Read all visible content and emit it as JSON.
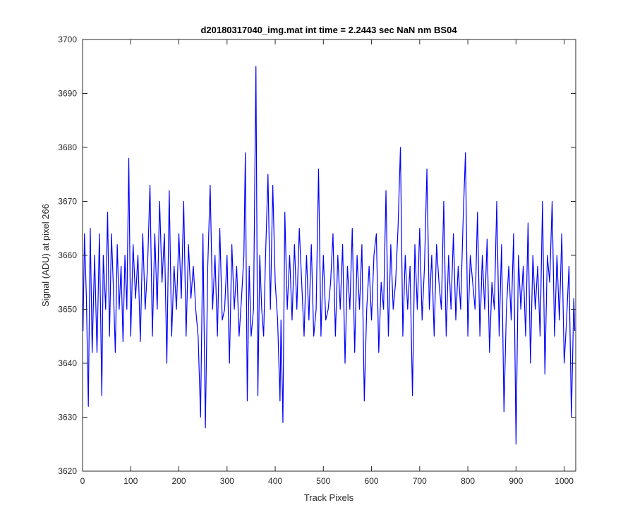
{
  "chart_data": {
    "type": "line",
    "title": "d20180317040_img.mat int time = 2.2443 sec  NaN nm BS04",
    "xlabel": "Track Pixels",
    "ylabel": "Signal (ADU) at pixel 266",
    "xlim": [
      0,
      1024
    ],
    "ylim": [
      3620,
      3700
    ],
    "xticks": [
      0,
      100,
      200,
      300,
      400,
      500,
      600,
      700,
      800,
      900,
      1000
    ],
    "yticks": [
      3620,
      3630,
      3640,
      3650,
      3660,
      3670,
      3680,
      3690,
      3700
    ],
    "grid": false,
    "series": [
      {
        "color": "#0000ff",
        "x": [
          1,
          4,
          8,
          12,
          16,
          20,
          25,
          30,
          35,
          40,
          43,
          48,
          52,
          56,
          60,
          64,
          68,
          72,
          76,
          80,
          84,
          88,
          92,
          96,
          100,
          105,
          110,
          115,
          120,
          125,
          130,
          135,
          140,
          145,
          150,
          155,
          160,
          165,
          170,
          175,
          180,
          185,
          190,
          195,
          200,
          205,
          210,
          215,
          220,
          225,
          230,
          235,
          240,
          245,
          250,
          255,
          260,
          265,
          270,
          275,
          280,
          285,
          290,
          295,
          300,
          305,
          310,
          315,
          320,
          325,
          330,
          335,
          338,
          342,
          346,
          350,
          355,
          360,
          364,
          368,
          372,
          376,
          380,
          385,
          390,
          395,
          400,
          405,
          410,
          412,
          416,
          420,
          425,
          430,
          435,
          440,
          445,
          450,
          455,
          460,
          465,
          470,
          475,
          480,
          485,
          490,
          495,
          500,
          505,
          510,
          515,
          520,
          525,
          530,
          535,
          540,
          545,
          550,
          555,
          560,
          565,
          570,
          575,
          580,
          585,
          590,
          595,
          600,
          605,
          610,
          615,
          620,
          625,
          630,
          635,
          640,
          645,
          650,
          655,
          660,
          665,
          670,
          675,
          680,
          685,
          690,
          695,
          700,
          705,
          710,
          715,
          720,
          725,
          730,
          735,
          740,
          745,
          750,
          755,
          760,
          765,
          770,
          775,
          780,
          785,
          790,
          795,
          800,
          805,
          810,
          815,
          820,
          825,
          830,
          835,
          840,
          845,
          850,
          855,
          860,
          865,
          870,
          875,
          880,
          885,
          890,
          895,
          900,
          905,
          910,
          915,
          920,
          925,
          930,
          935,
          940,
          945,
          950,
          955,
          960,
          965,
          970,
          975,
          980,
          985,
          990,
          995,
          1000,
          1005,
          1010,
          1015,
          1020,
          1022
        ],
        "y": [
          3646,
          3664,
          3652,
          3632,
          3665,
          3642,
          3660,
          3642,
          3664,
          3634,
          3660,
          3650,
          3668,
          3645,
          3664,
          3654,
          3642,
          3662,
          3650,
          3658,
          3644,
          3660,
          3650,
          3678,
          3645,
          3662,
          3652,
          3660,
          3644,
          3664,
          3650,
          3658,
          3673,
          3645,
          3664,
          3650,
          3670,
          3655,
          3664,
          3640,
          3672,
          3645,
          3658,
          3650,
          3664,
          3652,
          3670,
          3645,
          3662,
          3652,
          3658,
          3650,
          3645,
          3630,
          3664,
          3628,
          3658,
          3673,
          3650,
          3660,
          3645,
          3665,
          3648,
          3650,
          3660,
          3640,
          3662,
          3650,
          3658,
          3645,
          3652,
          3660,
          3679,
          3633,
          3658,
          3645,
          3650,
          3695,
          3634,
          3660,
          3650,
          3645,
          3660,
          3675,
          3650,
          3673,
          3655,
          3648,
          3633,
          3648,
          3629,
          3668,
          3650,
          3660,
          3648,
          3662,
          3650,
          3665,
          3655,
          3645,
          3660,
          3648,
          3662,
          3645,
          3650,
          3676,
          3645,
          3660,
          3648,
          3650,
          3655,
          3664,
          3645,
          3660,
          3650,
          3662,
          3640,
          3658,
          3650,
          3665,
          3642,
          3660,
          3650,
          3662,
          3633,
          3650,
          3658,
          3648,
          3660,
          3664,
          3642,
          3655,
          3650,
          3672,
          3645,
          3662,
          3650,
          3655,
          3665,
          3680,
          3645,
          3660,
          3650,
          3658,
          3634,
          3662,
          3650,
          3665,
          3648,
          3658,
          3676,
          3650,
          3660,
          3645,
          3662,
          3655,
          3650,
          3670,
          3645,
          3660,
          3650,
          3664,
          3648,
          3658,
          3650,
          3666,
          3679,
          3645,
          3660,
          3655,
          3650,
          3668,
          3645,
          3660,
          3650,
          3663,
          3642,
          3655,
          3650,
          3670,
          3645,
          3662,
          3631,
          3650,
          3658,
          3648,
          3664,
          3625,
          3660,
          3650,
          3658,
          3645,
          3666,
          3640,
          3660,
          3650,
          3658,
          3645,
          3670,
          3638,
          3660,
          3655,
          3670,
          3645,
          3660,
          3648,
          3664,
          3640,
          3648,
          3658,
          3630,
          3652,
          3646
        ]
      }
    ]
  }
}
